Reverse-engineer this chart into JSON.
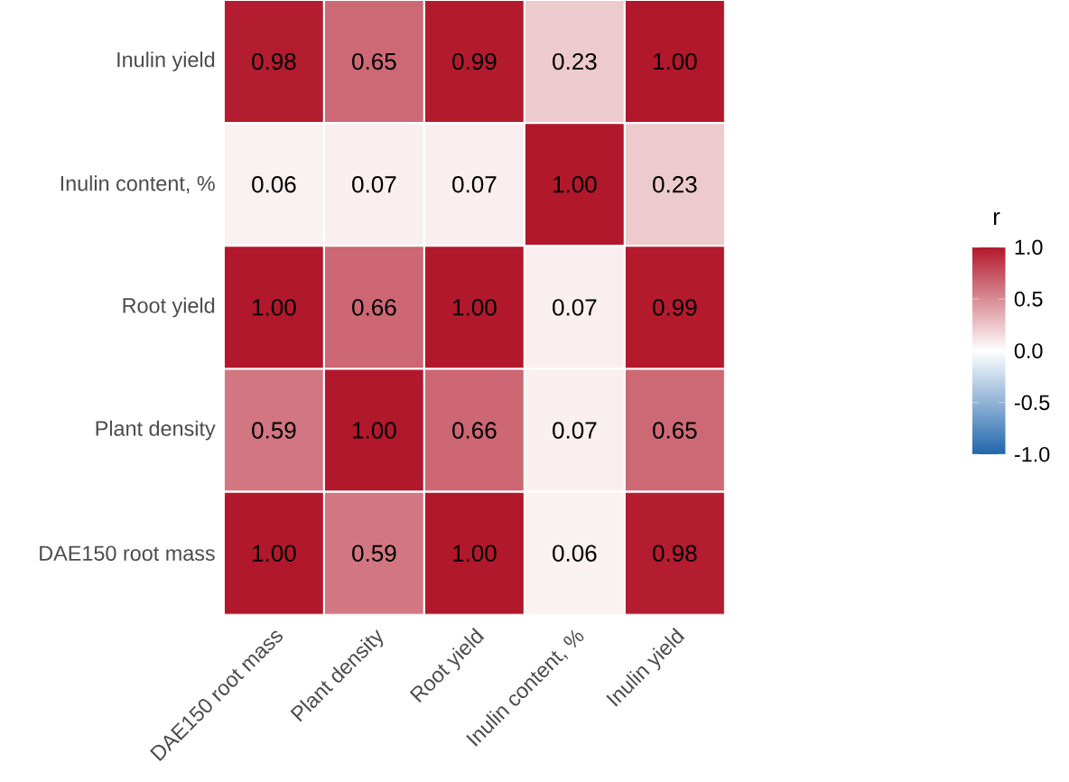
{
  "chart_data": {
    "type": "heatmap",
    "categories": [
      "DAE150 root mass",
      "Plant density",
      "Root yield",
      "Inulin content, %",
      "Inulin yield"
    ],
    "y_categories": [
      "Inulin yield",
      "Inulin content, %",
      "Root yield",
      "Plant density",
      "DAE150 root mass"
    ],
    "cells": [
      [
        0.98,
        0.65,
        0.99,
        0.23,
        1.0
      ],
      [
        0.06,
        0.07,
        0.07,
        1.0,
        0.23
      ],
      [
        1.0,
        0.66,
        1.0,
        0.07,
        0.99
      ],
      [
        0.59,
        1.0,
        0.66,
        0.07,
        0.65
      ],
      [
        1.0,
        0.59,
        1.0,
        0.06,
        0.98
      ]
    ],
    "cell_labels": [
      [
        "0.98",
        "0.65",
        "0.99",
        "0.23",
        "1.00"
      ],
      [
        "0.06",
        "0.07",
        "0.07",
        "1.00",
        "0.23"
      ],
      [
        "1.00",
        "0.66",
        "1.00",
        "0.07",
        "0.99"
      ],
      [
        "0.59",
        "1.00",
        "0.66",
        "0.07",
        "0.65"
      ],
      [
        "1.00",
        "0.59",
        "1.00",
        "0.06",
        "0.98"
      ]
    ],
    "clabel": "r",
    "clim": [
      -1,
      1
    ],
    "cticks": [
      {
        "value": -1,
        "label": "-1.0"
      },
      {
        "value": -0.5,
        "label": "-0.5"
      },
      {
        "value": 0,
        "label": "0.0"
      },
      {
        "value": 0.5,
        "label": "0.5"
      },
      {
        "value": 1,
        "label": "1.0"
      }
    ]
  }
}
